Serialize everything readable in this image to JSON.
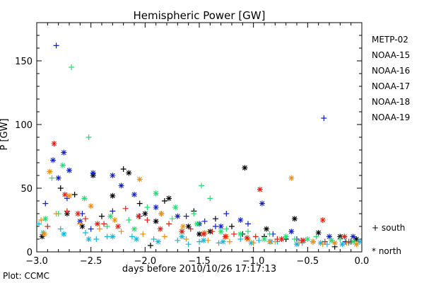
{
  "credit": "Plot: CCMC",
  "chart_data": {
    "type": "scatter",
    "title": "Hemispheric Power [GW]",
    "xlabel": "days before 2010/10/26 17:17:13",
    "ylabel": "P [GW]",
    "xlim": [
      -3.0,
      0.0
    ],
    "ylim": [
      0,
      180
    ],
    "xticks": [
      -3.0,
      -2.5,
      -2.0,
      -1.5,
      -1.0,
      -0.5,
      0.0
    ],
    "xtick_labels": [
      "−3.0",
      "−2.5",
      "−2.0",
      "−1.5",
      "−1.0",
      "−0.5",
      "0.0"
    ],
    "yticks": [
      0,
      50,
      100,
      150
    ],
    "ytick_labels": [
      "0",
      "50",
      "100",
      "150"
    ],
    "grid": false,
    "markers": [
      {
        "label": "+ south",
        "symbol": "+",
        "meaning": "south"
      },
      {
        "label": "* north",
        "symbol": "*",
        "meaning": "north"
      }
    ],
    "series": [
      {
        "name": "METP-02",
        "color": "#000000",
        "south": [
          [
            -2.78,
            50
          ],
          [
            -2.2,
            65
          ],
          [
            -2.05,
            38
          ],
          [
            -1.82,
            40
          ],
          [
            -1.55,
            32
          ],
          [
            -1.35,
            26
          ],
          [
            -1.1,
            14
          ],
          [
            -0.9,
            12
          ],
          [
            -0.7,
            10
          ],
          [
            -0.45,
            8
          ],
          [
            -0.25,
            4
          ],
          [
            -0.1,
            8
          ],
          [
            -2.65,
            45
          ],
          [
            -2.4,
            28
          ],
          [
            -1.95,
            5
          ],
          [
            -1.2,
            20
          ]
        ],
        "north": [
          [
            -2.95,
            12
          ],
          [
            -2.72,
            30
          ],
          [
            -2.48,
            60
          ],
          [
            -2.3,
            44
          ],
          [
            -2.15,
            62
          ],
          [
            -2.0,
            30
          ],
          [
            -1.78,
            42
          ],
          [
            -1.6,
            20
          ],
          [
            -1.4,
            16
          ],
          [
            -1.08,
            66
          ],
          [
            -0.88,
            18
          ],
          [
            -0.62,
            26
          ],
          [
            -0.4,
            15
          ],
          [
            -0.2,
            12
          ],
          [
            -0.05,
            10
          ],
          [
            -2.58,
            20
          ],
          [
            -1.9,
            24
          ],
          [
            -1.5,
            14
          ]
        ]
      },
      {
        "name": "NOAA-15",
        "color": "#1020c8",
        "south": [
          [
            -2.82,
            162
          ],
          [
            -2.92,
            38
          ],
          [
            -2.72,
            42
          ],
          [
            -2.58,
            30
          ],
          [
            -2.3,
            32
          ],
          [
            -2.05,
            28
          ],
          [
            -1.85,
            30
          ],
          [
            -1.62,
            28
          ],
          [
            -1.45,
            24
          ],
          [
            -1.25,
            30
          ],
          [
            -1.05,
            22
          ],
          [
            -0.82,
            14
          ],
          [
            -0.6,
            10
          ],
          [
            -0.35,
            105
          ],
          [
            -0.15,
            8
          ],
          [
            -2.5,
            18
          ],
          [
            -1.35,
            20
          ]
        ],
        "north": [
          [
            -2.85,
            72
          ],
          [
            -2.8,
            58
          ],
          [
            -2.75,
            78
          ],
          [
            -2.7,
            64
          ],
          [
            -2.48,
            62
          ],
          [
            -2.3,
            60
          ],
          [
            -2.22,
            52
          ],
          [
            -2.1,
            45
          ],
          [
            -1.9,
            35
          ],
          [
            -1.7,
            28
          ],
          [
            -1.5,
            22
          ],
          [
            -1.3,
            20
          ],
          [
            -1.12,
            25
          ],
          [
            -0.92,
            38
          ],
          [
            -0.65,
            16
          ],
          [
            -0.3,
            12
          ],
          [
            -0.08,
            12
          ],
          [
            -2.6,
            24
          ]
        ]
      },
      {
        "name": "NOAA-16",
        "color": "#10b8e0",
        "south": [
          [
            -2.98,
            22
          ],
          [
            -2.78,
            18
          ],
          [
            -2.55,
            15
          ],
          [
            -2.35,
            12
          ],
          [
            -2.12,
            12
          ],
          [
            -1.92,
            10
          ],
          [
            -1.7,
            9
          ],
          [
            -1.5,
            8
          ],
          [
            -1.32,
            7
          ],
          [
            -1.12,
            10
          ],
          [
            -0.95,
            9
          ],
          [
            -0.78,
            8
          ],
          [
            -0.55,
            7
          ],
          [
            -0.32,
            6
          ],
          [
            -0.12,
            7
          ],
          [
            -2.45,
            10
          ],
          [
            -1.6,
            6
          ]
        ],
        "north": [
          [
            -2.94,
            15
          ],
          [
            -2.75,
            14
          ],
          [
            -2.52,
            10
          ],
          [
            -2.3,
            12
          ],
          [
            -2.08,
            10
          ],
          [
            -1.88,
            8
          ],
          [
            -1.66,
            12
          ],
          [
            -1.46,
            9
          ],
          [
            -1.28,
            8
          ],
          [
            -1.02,
            7
          ],
          [
            -0.84,
            8
          ],
          [
            -0.6,
            6
          ],
          [
            -0.38,
            7
          ],
          [
            -0.18,
            6
          ],
          [
            -0.02,
            8
          ]
        ]
      },
      {
        "name": "NOAA-17",
        "color": "#20e070",
        "south": [
          [
            -2.86,
            58
          ],
          [
            -2.68,
            145
          ],
          [
            -2.52,
            90
          ],
          [
            -2.35,
            20
          ],
          [
            -2.15,
            25
          ],
          [
            -1.98,
            35
          ],
          [
            -1.75,
            26
          ],
          [
            -1.55,
            30
          ],
          [
            -1.48,
            52
          ],
          [
            -1.25,
            18
          ],
          [
            -1.05,
            16
          ],
          [
            -0.85,
            14
          ],
          [
            -0.62,
            10
          ],
          [
            -0.42,
            12
          ],
          [
            -0.2,
            10
          ],
          [
            -2.8,
            30
          ],
          [
            -1.4,
            42
          ]
        ],
        "north": [
          [
            -2.92,
            26
          ],
          [
            -2.76,
            68
          ],
          [
            -2.56,
            42
          ],
          [
            -2.32,
            28
          ],
          [
            -2.1,
            18
          ],
          [
            -1.9,
            46
          ],
          [
            -1.72,
            35
          ],
          [
            -1.52,
            22
          ],
          [
            -1.3,
            16
          ],
          [
            -1.12,
            14
          ],
          [
            -0.9,
            10
          ],
          [
            -0.7,
            12
          ],
          [
            -0.5,
            10
          ],
          [
            -0.28,
            9
          ],
          [
            -0.08,
            8
          ]
        ]
      },
      {
        "name": "NOAA-18",
        "color": "#f09010",
        "south": [
          [
            -2.96,
            25
          ],
          [
            -2.82,
            30
          ],
          [
            -2.6,
            22
          ],
          [
            -2.42,
            18
          ],
          [
            -2.22,
            16
          ],
          [
            -2.02,
            14
          ],
          [
            -1.82,
            12
          ],
          [
            -1.62,
            10
          ],
          [
            -1.42,
            9
          ],
          [
            -1.22,
            8
          ],
          [
            -1.0,
            7
          ],
          [
            -0.8,
            8
          ],
          [
            -0.58,
            7
          ],
          [
            -0.36,
            6
          ],
          [
            -0.14,
            7
          ]
        ],
        "north": [
          [
            -2.88,
            63
          ],
          [
            -2.7,
            44
          ],
          [
            -2.5,
            36
          ],
          [
            -2.28,
            25
          ],
          [
            -2.05,
            57
          ],
          [
            -1.85,
            30
          ],
          [
            -1.65,
            20
          ],
          [
            -1.45,
            15
          ],
          [
            -1.25,
            12
          ],
          [
            -1.05,
            10
          ],
          [
            -0.85,
            8
          ],
          [
            -0.65,
            58
          ],
          [
            -0.45,
            8
          ],
          [
            -0.25,
            7
          ],
          [
            -0.05,
            6
          ],
          [
            -2.93,
            14
          ]
        ]
      },
      {
        "name": "NOAA-19",
        "color": "#e02010",
        "south": [
          [
            -2.9,
            20
          ],
          [
            -2.72,
            32
          ],
          [
            -2.55,
            26
          ],
          [
            -2.38,
            22
          ],
          [
            -2.18,
            34
          ],
          [
            -1.98,
            25
          ],
          [
            -1.78,
            22
          ],
          [
            -1.58,
            18
          ],
          [
            -1.38,
            16
          ],
          [
            -1.18,
            14
          ],
          [
            -0.98,
            12
          ],
          [
            -0.78,
            10
          ],
          [
            -0.56,
            9
          ],
          [
            -0.34,
            8
          ],
          [
            -0.12,
            8
          ]
        ],
        "north": [
          [
            -2.84,
            85
          ],
          [
            -2.74,
            45
          ],
          [
            -2.62,
            30
          ],
          [
            -2.44,
            22
          ],
          [
            -2.25,
            20
          ],
          [
            -2.06,
            28
          ],
          [
            -1.86,
            18
          ],
          [
            -1.66,
            16
          ],
          [
            -1.46,
            14
          ],
          [
            -1.26,
            12
          ],
          [
            -1.06,
            11
          ],
          [
            -0.94,
            49
          ],
          [
            -0.74,
            10
          ],
          [
            -0.54,
            9
          ],
          [
            -0.36,
            25
          ],
          [
            -0.16,
            12
          ]
        ]
      }
    ]
  }
}
